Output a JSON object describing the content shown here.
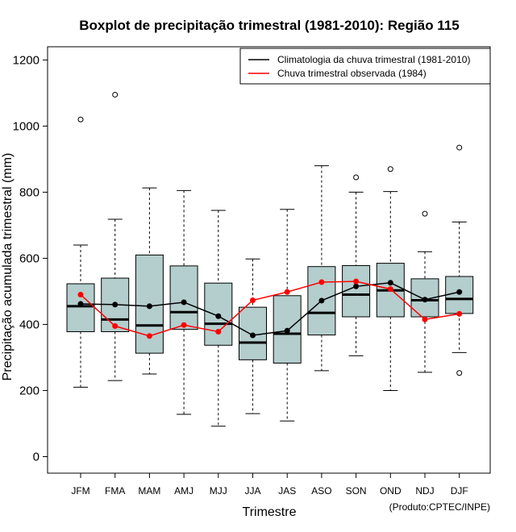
{
  "chart_data": {
    "type": "boxplot",
    "title": "Boxplot de precipitação trimestral (1981-2010): Região 115",
    "xlabel": "Trimestre",
    "ylabel": "Precipitação acumulada trimestral (mm)",
    "ylim": [
      -50,
      1240
    ],
    "yticks": [
      0,
      200,
      400,
      600,
      800,
      1000,
      1200
    ],
    "categories": [
      "JFM",
      "FMA",
      "MAM",
      "AMJ",
      "MJJ",
      "JJA",
      "JAS",
      "ASO",
      "SON",
      "OND",
      "NDJ",
      "DJF"
    ],
    "boxes": [
      {
        "label": "JFM",
        "whisker_low": 210,
        "q1": 378,
        "median": 455,
        "q3": 523,
        "whisker_high": 640,
        "outliers": [
          1020
        ]
      },
      {
        "label": "FMA",
        "whisker_low": 230,
        "q1": 378,
        "median": 415,
        "q3": 540,
        "whisker_high": 718,
        "outliers": [
          1095
        ]
      },
      {
        "label": "MAM",
        "whisker_low": 250,
        "q1": 313,
        "median": 397,
        "q3": 610,
        "whisker_high": 813,
        "outliers": []
      },
      {
        "label": "AMJ",
        "whisker_low": 128,
        "q1": 385,
        "median": 437,
        "q3": 577,
        "whisker_high": 805,
        "outliers": []
      },
      {
        "label": "MJJ",
        "whisker_low": 92,
        "q1": 337,
        "median": 402,
        "q3": 525,
        "whisker_high": 745,
        "outliers": []
      },
      {
        "label": "JJA",
        "whisker_low": 130,
        "q1": 293,
        "median": 345,
        "q3": 452,
        "whisker_high": 598,
        "outliers": []
      },
      {
        "label": "JAS",
        "whisker_low": 108,
        "q1": 283,
        "median": 372,
        "q3": 487,
        "whisker_high": 748,
        "outliers": []
      },
      {
        "label": "ASO",
        "whisker_low": 260,
        "q1": 368,
        "median": 435,
        "q3": 575,
        "whisker_high": 880,
        "outliers": []
      },
      {
        "label": "SON",
        "whisker_low": 305,
        "q1": 423,
        "median": 490,
        "q3": 578,
        "whisker_high": 800,
        "outliers": [
          845
        ]
      },
      {
        "label": "OND",
        "whisker_low": 200,
        "q1": 423,
        "median": 503,
        "q3": 585,
        "whisker_high": 802,
        "outliers": [
          870
        ]
      },
      {
        "label": "NDJ",
        "whisker_low": 255,
        "q1": 423,
        "median": 473,
        "q3": 538,
        "whisker_high": 620,
        "outliers": [
          735
        ]
      },
      {
        "label": "DJF",
        "whisker_low": 315,
        "q1": 433,
        "median": 477,
        "q3": 545,
        "whisker_high": 710,
        "outliers": [
          253,
          935
        ]
      }
    ],
    "series": [
      {
        "name": "Climatologia da chuva trimestral (1981-2010)",
        "color": "#000000",
        "values": [
          462,
          460,
          455,
          467,
          425,
          367,
          381,
          472,
          515,
          526,
          475,
          498
        ]
      },
      {
        "name": "Chuva trimestral observada (1984)",
        "color": "#ff0000",
        "values": [
          490,
          395,
          365,
          398,
          378,
          473,
          498,
          528,
          530,
          507,
          415,
          432
        ]
      }
    ],
    "box_fill": "#b4cdcd",
    "legend_position": "top-right"
  },
  "credit": "(Produto:CPTEC/INPE)"
}
